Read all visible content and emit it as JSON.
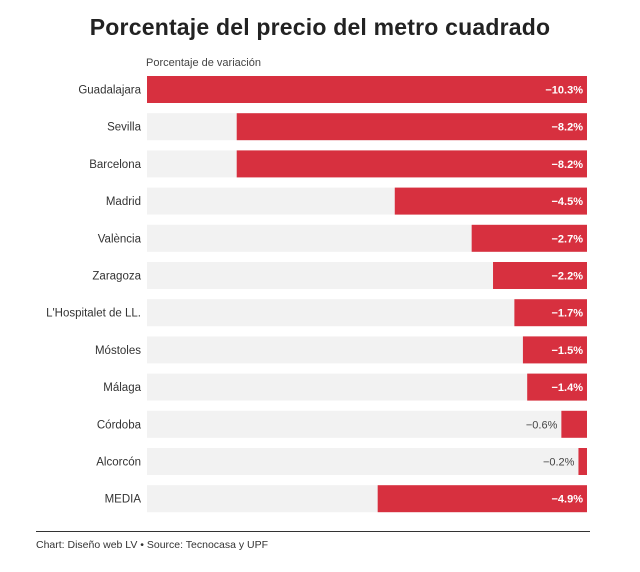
{
  "chart_data": {
    "type": "bar",
    "orientation": "horizontal",
    "title": "Porcentaje del precio del metro cuadrado",
    "xlabel": "Porcentaje de variación",
    "categories": [
      "Guadalajara",
      "Sevilla",
      "Barcelona",
      "Madrid",
      "València",
      "Zaragoza",
      "L'Hospitalet de LL.",
      "Móstoles",
      "Málaga",
      "Córdoba",
      "Alcorcón",
      "MEDIA"
    ],
    "values": [
      -10.3,
      -8.2,
      -8.2,
      -4.5,
      -2.7,
      -2.2,
      -1.7,
      -1.5,
      -1.4,
      -0.6,
      -0.2,
      -4.9
    ],
    "value_labels": [
      "−10.3%",
      "−8.2%",
      "−8.2%",
      "−4.5%",
      "−2.7%",
      "−2.2%",
      "−1.7%",
      "−1.5%",
      "−1.4%",
      "−0.6%",
      "−0.2%",
      "−4.9%"
    ],
    "xlim": [
      -10.3,
      0
    ],
    "bar_color": "#d7303f",
    "track_color": "#f2f2f2",
    "footer": "Chart: Diseño web LV • Source: Tecnocasa y UPF"
  }
}
